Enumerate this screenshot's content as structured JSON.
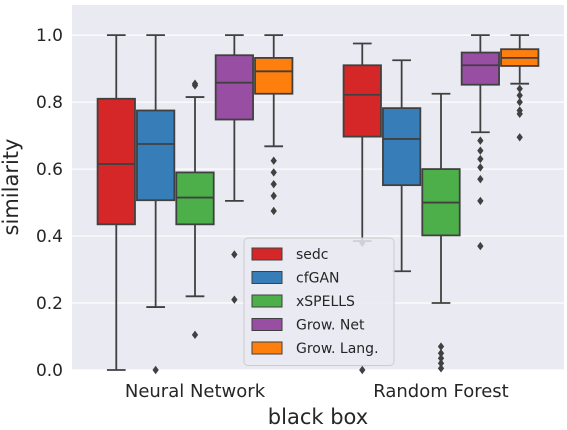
{
  "chart_data": {
    "type": "box",
    "xlabel": "black box",
    "ylabel": "similarity",
    "ylim": [
      0.0,
      1.09
    ],
    "yticks": [
      "0.0",
      "0.2",
      "0.4",
      "0.6",
      "0.8",
      "1.0"
    ],
    "grid": true,
    "legend_position": "lower-center",
    "categories": [
      "Neural Network",
      "Random Forest"
    ],
    "series": [
      {
        "name": "sedc",
        "color": "#d62728",
        "boxes": [
          {
            "whisker_low": 0.0,
            "q1": 0.435,
            "median": 0.615,
            "q3": 0.81,
            "whisker_high": 1.0,
            "outliers": []
          },
          {
            "whisker_low": 0.385,
            "q1": 0.697,
            "median": 0.822,
            "q3": 0.91,
            "whisker_high": 0.975,
            "outliers": [
              0.38,
              0.0
            ]
          }
        ]
      },
      {
        "name": "cfGAN",
        "color": "#377eb8",
        "boxes": [
          {
            "whisker_low": 0.188,
            "q1": 0.507,
            "median": 0.675,
            "q3": 0.775,
            "whisker_high": 1.0,
            "outliers": [
              0.0
            ]
          },
          {
            "whisker_low": 0.295,
            "q1": 0.552,
            "median": 0.69,
            "q3": 0.782,
            "whisker_high": 0.925,
            "outliers": []
          }
        ]
      },
      {
        "name": "xSPELLS",
        "color": "#4daf4a",
        "boxes": [
          {
            "whisker_low": 0.22,
            "q1": 0.435,
            "median": 0.515,
            "q3": 0.59,
            "whisker_high": 0.815,
            "outliers": [
              0.85,
              0.855,
              0.105
            ]
          },
          {
            "whisker_low": 0.2,
            "q1": 0.402,
            "median": 0.5,
            "q3": 0.6,
            "whisker_high": 0.825,
            "outliers": [
              0.07,
              0.05,
              0.035,
              0.02,
              0.005
            ]
          }
        ]
      },
      {
        "name": "Grow. Net",
        "color": "#984ea3",
        "boxes": [
          {
            "whisker_low": 0.505,
            "q1": 0.748,
            "median": 0.858,
            "q3": 0.94,
            "whisker_high": 1.0,
            "outliers": [
              0.345,
              0.21
            ]
          },
          {
            "whisker_low": 0.71,
            "q1": 0.852,
            "median": 0.91,
            "q3": 0.948,
            "whisker_high": 1.0,
            "outliers": [
              0.685,
              0.655,
              0.63,
              0.605,
              0.57,
              0.505,
              0.37
            ]
          }
        ]
      },
      {
        "name": "Grow. Lang.",
        "color": "#ff7f0e",
        "boxes": [
          {
            "whisker_low": 0.668,
            "q1": 0.825,
            "median": 0.892,
            "q3": 0.932,
            "whisker_high": 1.0,
            "outliers": [
              0.625,
              0.59,
              0.555,
              0.52,
              0.475
            ]
          },
          {
            "whisker_low": 0.855,
            "q1": 0.908,
            "median": 0.932,
            "q3": 0.958,
            "whisker_high": 1.0,
            "outliers": [
              0.84,
              0.82,
              0.8,
              0.775,
              0.765,
              0.695
            ]
          }
        ]
      }
    ]
  }
}
